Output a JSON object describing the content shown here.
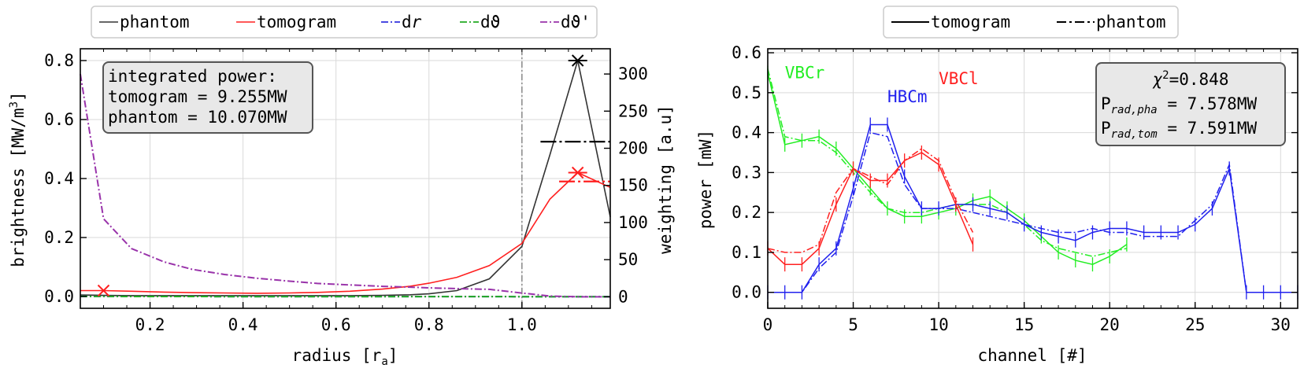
{
  "chart_data": [
    {
      "type": "line",
      "legend": {
        "placement": "top",
        "entries": [
          "phantom",
          "tomogram",
          "dr",
          "dϑ",
          "dϑ'"
        ]
      },
      "xlabel": "radius [ra]",
      "xlabel_main": "radius [r",
      "xlabel_sub": "a",
      "xlabel_end": "]",
      "ylabel": "brightness [MW/m3]",
      "ylabel_main": "brightness [MW/m",
      "ylabel_sup": "3",
      "ylabel_end": "]",
      "y2label": "weighting [a.u]",
      "xlim": [
        0.05,
        1.19
      ],
      "ylim": [
        -0.04,
        0.84
      ],
      "y2lim": [
        -15.5,
        334
      ],
      "xticks": [
        "0.2",
        "0.4",
        "0.6",
        "0.8",
        "1.0"
      ],
      "yticks": [
        "0.0",
        "0.2",
        "0.4",
        "0.6",
        "0.8"
      ],
      "y2ticks": [
        "0",
        "50",
        "100",
        "150",
        "200",
        "250",
        "300"
      ],
      "grid": true,
      "info_box": {
        "line1": "integrated power:",
        "line2": "tomogram = 9.255MW",
        "line3": "phantom = 10.070MW"
      },
      "separatrix_x": 1.0,
      "series": [
        {
          "name": "phantom",
          "color": "#333333",
          "axis": "left",
          "x": [
            0.05,
            0.1,
            0.16,
            0.23,
            0.29,
            0.36,
            0.43,
            0.5,
            0.56,
            0.63,
            0.7,
            0.76,
            0.8,
            0.86,
            0.93,
            1.0,
            1.06,
            1.12,
            1.19
          ],
          "y": [
            0.005,
            0.004,
            0.003,
            0.003,
            0.003,
            0.003,
            0.003,
            0.003,
            0.003,
            0.003,
            0.004,
            0.006,
            0.009,
            0.02,
            0.06,
            0.17,
            0.48,
            0.8,
            0.27
          ]
        },
        {
          "name": "tomogram",
          "color": "#ff2020",
          "axis": "left",
          "x": [
            0.05,
            0.1,
            0.16,
            0.23,
            0.29,
            0.36,
            0.43,
            0.5,
            0.56,
            0.63,
            0.7,
            0.76,
            0.8,
            0.86,
            0.93,
            1.0,
            1.06,
            1.12,
            1.19
          ],
          "y": [
            0.02,
            0.02,
            0.018,
            0.015,
            0.013,
            0.012,
            0.011,
            0.012,
            0.014,
            0.018,
            0.025,
            0.035,
            0.045,
            0.065,
            0.105,
            0.18,
            0.33,
            0.42,
            0.37
          ]
        },
        {
          "name": "dr",
          "color": "#3030dd",
          "axis": "right",
          "x": [
            0.05,
            0.1,
            0.2,
            0.4,
            0.6,
            0.8,
            1.0,
            1.06,
            1.12,
            1.19
          ],
          "y": [
            0.5,
            0.5,
            0.4,
            0.3,
            0.3,
            0.3,
            0.2,
            0.1,
            0.1,
            0.1
          ]
        },
        {
          "name": "dϑ",
          "color": "#22aa22",
          "axis": "right",
          "x": [
            0.05,
            0.1,
            0.2,
            0.4,
            0.6,
            0.8,
            1.0,
            1.06,
            1.12,
            1.19
          ],
          "y": [
            0.6,
            0.5,
            0.4,
            0.3,
            0.3,
            0.3,
            0.2,
            0.1,
            0.1,
            0.1
          ]
        },
        {
          "name": "dϑ'",
          "color": "#9933aa",
          "axis": "right",
          "x": [
            0.05,
            0.1,
            0.16,
            0.23,
            0.29,
            0.36,
            0.43,
            0.5,
            0.56,
            0.63,
            0.7,
            0.76,
            0.8,
            0.86,
            0.93,
            1.0,
            1.06,
            1.12,
            1.19
          ],
          "y": [
            300,
            105,
            65,
            47,
            37,
            30,
            25,
            21,
            18,
            16,
            14,
            13,
            12,
            11,
            10,
            5,
            1,
            0,
            0
          ]
        }
      ],
      "markers": [
        {
          "x": 0.1,
          "y": 0.02,
          "color": "#ff2020"
        },
        {
          "x": 1.12,
          "y": 0.8,
          "color": "#000000"
        },
        {
          "x": 1.12,
          "y": 0.42,
          "color": "#ff2020"
        }
      ],
      "err_bars": [
        {
          "x0": 1.04,
          "x1": 1.19,
          "y": 0.525,
          "color": "#000000"
        },
        {
          "x0": 1.08,
          "x1": 1.19,
          "y": 0.39,
          "color": "#ff2020"
        }
      ]
    },
    {
      "type": "line",
      "legend": {
        "placement": "top",
        "entries": [
          "tomogram",
          "phantom"
        ]
      },
      "xlabel": "channel [#]",
      "ylabel": "power [mW]",
      "xlim": [
        0,
        31
      ],
      "ylim": [
        -0.04,
        0.61
      ],
      "xticks": [
        "0",
        "5",
        "10",
        "15",
        "20",
        "25",
        "30"
      ],
      "yticks": [
        "0.0",
        "0.1",
        "0.2",
        "0.3",
        "0.4",
        "0.5",
        "0.6"
      ],
      "grid": true,
      "info_box": {
        "chi_main": "χ",
        "chi_sup": "2",
        "chi_val": "=0.848",
        "p1_main": "P",
        "p1_sub": "rad,pha",
        "p1_val": " = 7.578MW",
        "p2_main": "P",
        "p2_sub": "rad,tom",
        "p2_val": " = 7.591MW"
      },
      "camera_labels": [
        {
          "text": "VBCr",
          "color": "#22ee22",
          "x": 1.0,
          "y": 0.55
        },
        {
          "text": "HBCm",
          "color": "#2020ee",
          "x": 7.0,
          "y": 0.49
        },
        {
          "text": "VBCl",
          "color": "#ff2020",
          "x": 10.0,
          "y": 0.535
        }
      ],
      "series": [
        {
          "name": "VBCr tomogram",
          "color": "#22ee22",
          "style": "solid",
          "x": [
            0,
            1,
            2,
            3,
            4,
            5,
            6,
            7,
            8,
            9,
            10,
            11,
            12,
            13,
            14,
            15,
            16,
            17,
            18,
            19,
            20,
            21
          ],
          "y": [
            0.55,
            0.37,
            0.38,
            0.39,
            0.36,
            0.31,
            0.26,
            0.21,
            0.19,
            0.19,
            0.2,
            0.21,
            0.23,
            0.24,
            0.21,
            0.18,
            0.14,
            0.1,
            0.08,
            0.07,
            0.09,
            0.12
          ]
        },
        {
          "name": "VBCr phantom",
          "color": "#22ee22",
          "style": "dashdot",
          "x": [
            0,
            1,
            2,
            3,
            4,
            5,
            6,
            7,
            8,
            9,
            10,
            11,
            12,
            13,
            14,
            15,
            16,
            17,
            18,
            19,
            20,
            21
          ],
          "y": [
            0.56,
            0.39,
            0.38,
            0.38,
            0.35,
            0.3,
            0.25,
            0.21,
            0.2,
            0.2,
            0.21,
            0.22,
            0.22,
            0.22,
            0.2,
            0.17,
            0.13,
            0.11,
            0.1,
            0.09,
            0.1,
            0.11
          ]
        },
        {
          "name": "HBCm tomogram",
          "color": "#2020ee",
          "style": "solid",
          "x": [
            0,
            1,
            2,
            3,
            4,
            5,
            6,
            7,
            8,
            9,
            10,
            11,
            12,
            13,
            14,
            15,
            16,
            17,
            18,
            19,
            20,
            21,
            22,
            23,
            24,
            25,
            26,
            27,
            28,
            29,
            30,
            31
          ],
          "y": [
            0,
            0,
            0,
            0.07,
            0.11,
            0.26,
            0.42,
            0.42,
            0.29,
            0.21,
            0.21,
            0.22,
            0.22,
            0.21,
            0.2,
            0.17,
            0.15,
            0.14,
            0.13,
            0.15,
            0.16,
            0.16,
            0.15,
            0.15,
            0.15,
            0.17,
            0.21,
            0.31,
            0,
            0,
            0,
            0
          ]
        },
        {
          "name": "HBCm phantom",
          "color": "#2020ee",
          "style": "dashdot",
          "x": [
            0,
            1,
            2,
            3,
            4,
            5,
            6,
            7,
            8,
            9,
            10,
            11,
            12,
            13,
            14,
            15,
            16,
            17,
            18,
            19,
            20,
            21,
            22,
            23,
            24,
            25,
            26,
            27,
            28,
            29,
            30,
            31
          ],
          "y": [
            0,
            0,
            0,
            0.06,
            0.1,
            0.24,
            0.4,
            0.39,
            0.27,
            0.21,
            0.21,
            0.21,
            0.2,
            0.19,
            0.18,
            0.17,
            0.16,
            0.15,
            0.15,
            0.16,
            0.15,
            0.15,
            0.14,
            0.14,
            0.14,
            0.18,
            0.22,
            0.32,
            0,
            0,
            0,
            0
          ]
        },
        {
          "name": "VBCl tomogram",
          "color": "#ff2020",
          "style": "solid",
          "x": [
            0,
            1,
            2,
            3,
            4,
            5,
            6,
            7,
            8,
            9,
            10,
            11,
            12
          ],
          "y": [
            0.11,
            0.07,
            0.07,
            0.11,
            0.22,
            0.31,
            0.28,
            0.28,
            0.33,
            0.35,
            0.32,
            0.22,
            0.12
          ]
        },
        {
          "name": "VBCl phantom",
          "color": "#ff2020",
          "style": "dashdot",
          "x": [
            0,
            1,
            2,
            3,
            4,
            5,
            6,
            7,
            8,
            9,
            10,
            11,
            12
          ],
          "y": [
            0.11,
            0.1,
            0.1,
            0.12,
            0.25,
            0.31,
            0.29,
            0.27,
            0.33,
            0.36,
            0.33,
            0.23,
            0.15
          ]
        }
      ]
    }
  ]
}
